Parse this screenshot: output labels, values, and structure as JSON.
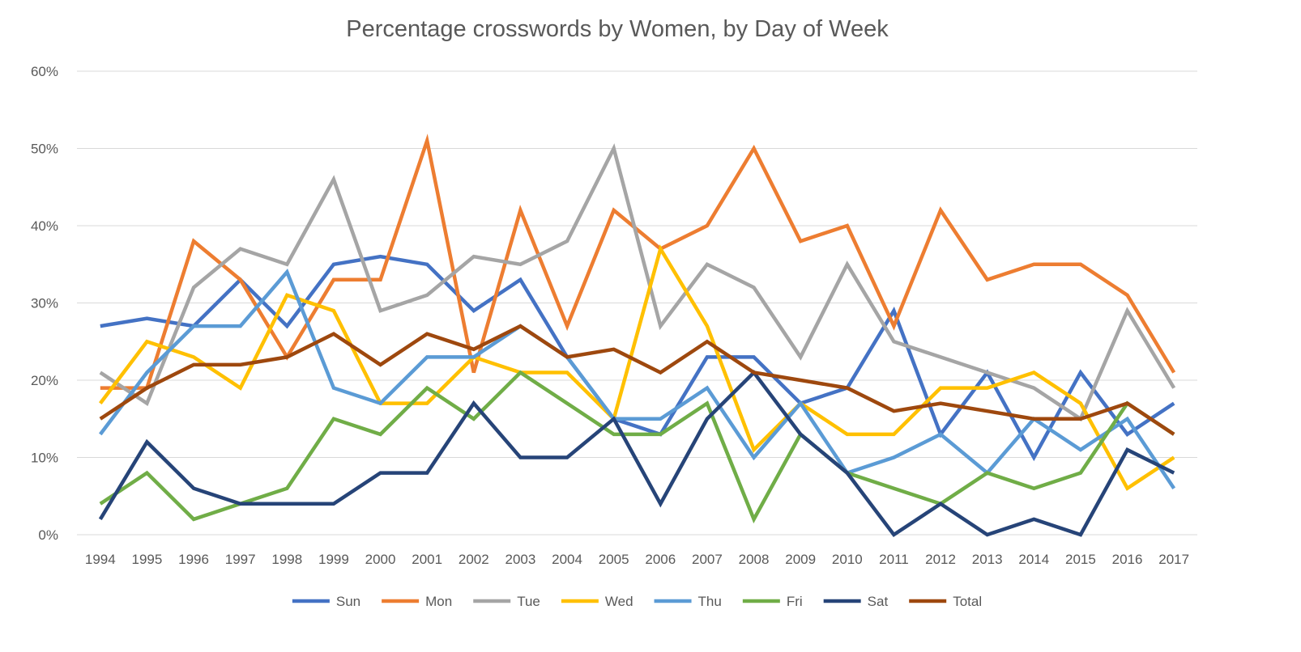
{
  "chart_data": {
    "type": "line",
    "title": "Percentage crosswords by Women, by Day of Week",
    "xlabel": "",
    "ylabel": "",
    "ylim": [
      0,
      60
    ],
    "y_ticks": [
      "0%",
      "10%",
      "20%",
      "30%",
      "40%",
      "50%",
      "60%"
    ],
    "grid": true,
    "legend_position": "bottom",
    "x": [
      "1994",
      "1995",
      "1996",
      "1997",
      "1998",
      "1999",
      "2000",
      "2001",
      "2002",
      "2003",
      "2004",
      "2005",
      "2006",
      "2007",
      "2008",
      "2009",
      "2010",
      "2011",
      "2012",
      "2013",
      "2014",
      "2015",
      "2016",
      "2017"
    ],
    "series": [
      {
        "name": "Sun",
        "color": "#4472c4",
        "values": [
          27,
          28,
          27,
          33,
          27,
          35,
          36,
          35,
          29,
          33,
          23,
          15,
          13,
          23,
          23,
          17,
          19,
          29,
          13,
          21,
          10,
          21,
          13,
          17
        ]
      },
      {
        "name": "Mon",
        "color": "#ed7d31",
        "values": [
          19,
          19,
          38,
          33,
          23,
          33,
          33,
          51,
          21,
          42,
          27,
          42,
          37,
          40,
          50,
          38,
          40,
          27,
          42,
          33,
          35,
          35,
          31,
          21
        ]
      },
      {
        "name": "Tue",
        "color": "#a5a5a5",
        "values": [
          21,
          17,
          32,
          37,
          35,
          46,
          29,
          31,
          36,
          35,
          38,
          50,
          27,
          35,
          32,
          23,
          35,
          25,
          23,
          21,
          19,
          15,
          29,
          19
        ]
      },
      {
        "name": "Wed",
        "color": "#ffc000",
        "values": [
          17,
          25,
          23,
          19,
          31,
          29,
          17,
          17,
          23,
          21,
          21,
          15,
          37,
          27,
          11,
          17,
          13,
          13,
          19,
          19,
          21,
          17,
          6,
          10
        ]
      },
      {
        "name": "Thu",
        "color": "#5b9bd5",
        "values": [
          13,
          21,
          27,
          27,
          34,
          19,
          17,
          23,
          23,
          27,
          23,
          15,
          15,
          19,
          10,
          17,
          8,
          10,
          13,
          8,
          15,
          11,
          15,
          6
        ]
      },
      {
        "name": "Fri",
        "color": "#70ad47",
        "values": [
          4,
          8,
          2,
          4,
          6,
          15,
          13,
          19,
          15,
          21,
          17,
          13,
          13,
          17,
          2,
          13,
          8,
          6,
          4,
          8,
          6,
          8,
          17,
          13
        ]
      },
      {
        "name": "Sat",
        "color": "#264478",
        "values": [
          2,
          12,
          6,
          4,
          4,
          4,
          8,
          8,
          17,
          10,
          10,
          15,
          4,
          15,
          21,
          13,
          8,
          0,
          4,
          0,
          2,
          0,
          11,
          8
        ]
      },
      {
        "name": "Total",
        "color": "#9e480e",
        "values": [
          15,
          19,
          22,
          22,
          23,
          26,
          22,
          26,
          24,
          27,
          23,
          24,
          21,
          25,
          21,
          20,
          19,
          16,
          17,
          16,
          15,
          15,
          17,
          13
        ]
      }
    ]
  }
}
